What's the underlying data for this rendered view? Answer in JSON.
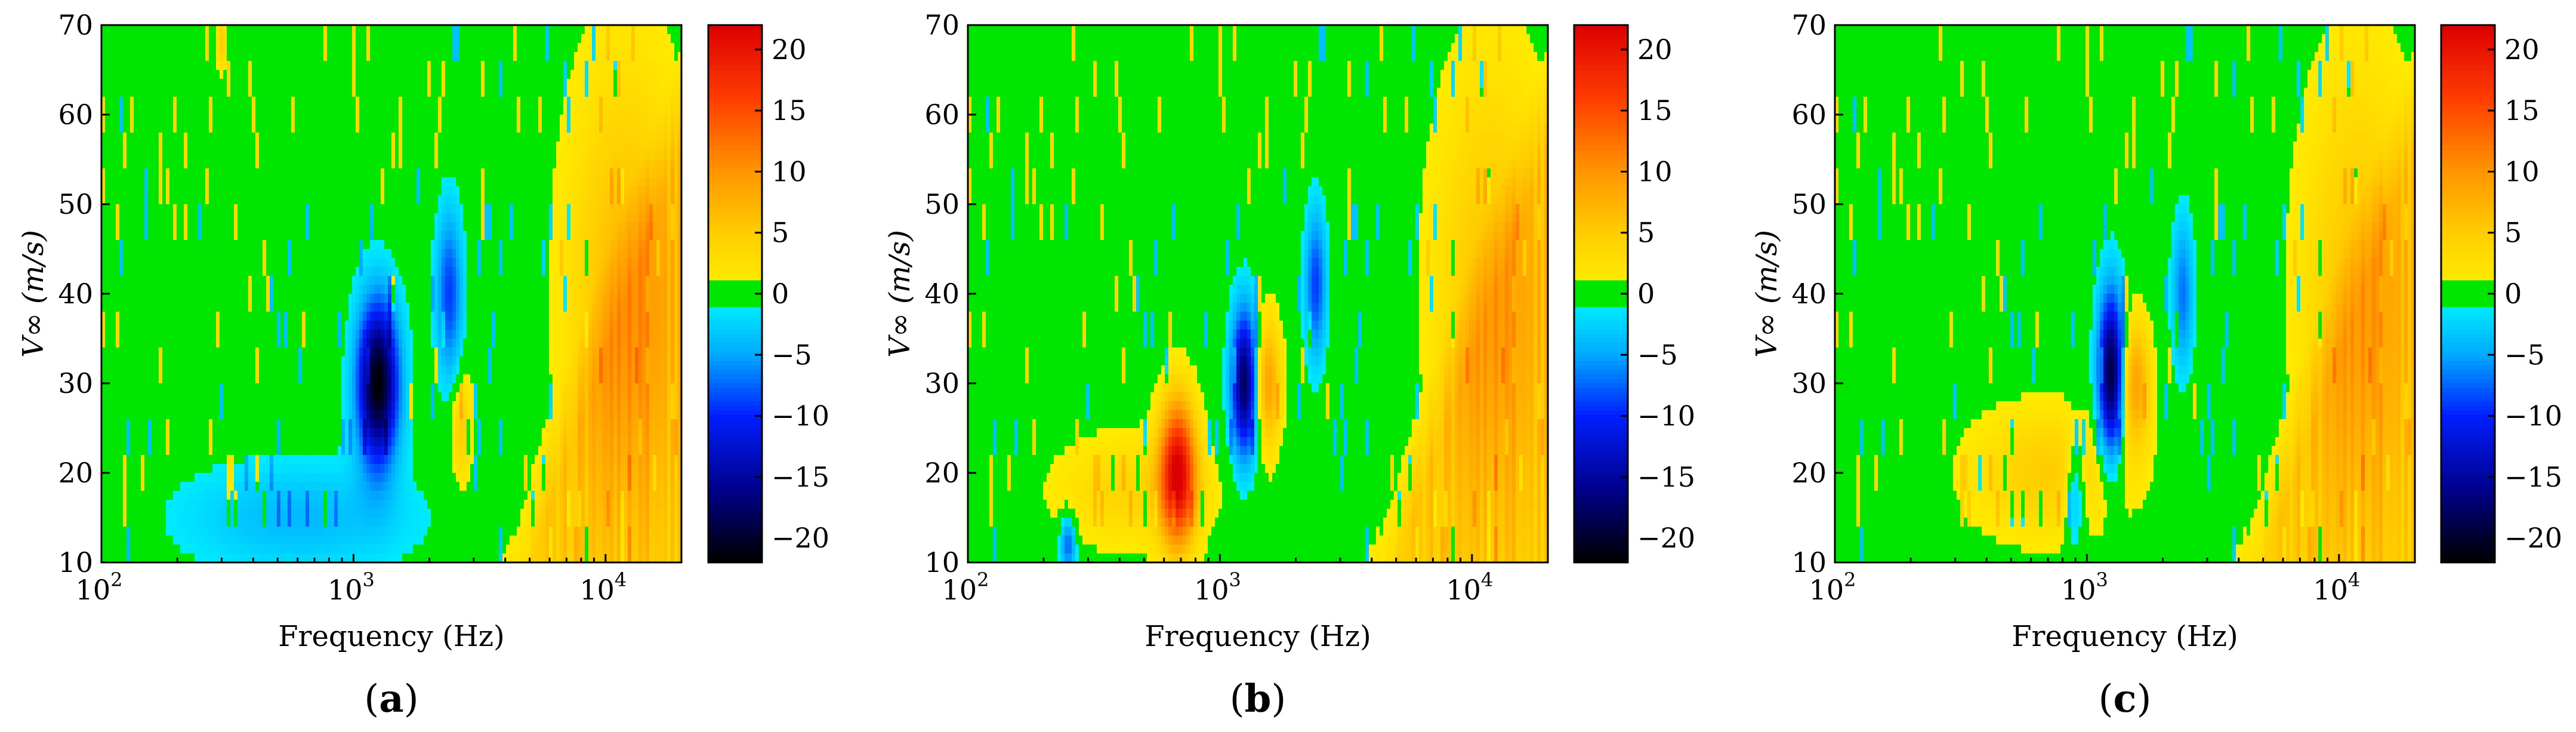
{
  "panels": [
    {
      "label_open": "(",
      "label_letter": "a",
      "label_close": ")",
      "chart_data": {
        "type": "heatmap",
        "xlabel": "Frequency (Hz)",
        "ylabel": "V∞ (m/s)",
        "xscale": "log",
        "xlim": [
          100,
          20000
        ],
        "ylim": [
          10,
          70
        ],
        "xticks": [
          {
            "value": 100,
            "base": "10",
            "exp": "2"
          },
          {
            "value": 1000,
            "base": "10",
            "exp": "3"
          },
          {
            "value": 10000,
            "base": "10",
            "exp": "4"
          }
        ],
        "yticks": [
          10,
          20,
          30,
          40,
          50,
          60,
          70
        ],
        "colorbar": {
          "range": [
            -22,
            22
          ],
          "ticks": [
            "20",
            "15",
            "10",
            "5",
            "0",
            "−5",
            "−10",
            "−15",
            "−20"
          ],
          "tick_values": [
            20,
            15,
            10,
            5,
            0,
            -5,
            -10,
            -15,
            -20
          ],
          "neutral_band": [
            -1,
            1
          ]
        },
        "features": [
          {
            "type": "negative",
            "f": 1250,
            "v": 30,
            "df": 0.08,
            "dv": 9,
            "amp": -22
          },
          {
            "type": "negative",
            "f": 2400,
            "v": 40,
            "df": 0.05,
            "dv": 9,
            "amp": -9
          },
          {
            "type": "negative",
            "f": 600,
            "v": 15,
            "df": 0.45,
            "dv": 6,
            "amp": -4
          },
          {
            "type": "positive",
            "f": 2700,
            "v": 25,
            "df": 0.04,
            "dv": 6,
            "amp": 5
          },
          {
            "type": "positive",
            "f": 300,
            "v": 68,
            "df": 0.02,
            "dv": 3,
            "amp": 5
          },
          {
            "type": "positive",
            "f": 12000,
            "v": 40,
            "df": 0.22,
            "dv": 25,
            "amp": 7
          }
        ]
      }
    },
    {
      "label_open": "(",
      "label_letter": "b",
      "label_close": ")",
      "chart_data": {
        "type": "heatmap",
        "xlabel": "Frequency (Hz)",
        "ylabel": "V∞ (m/s)",
        "xscale": "log",
        "xlim": [
          100,
          20000
        ],
        "ylim": [
          10,
          70
        ],
        "xticks": [
          {
            "value": 100,
            "base": "10",
            "exp": "2"
          },
          {
            "value": 1000,
            "base": "10",
            "exp": "3"
          },
          {
            "value": 10000,
            "base": "10",
            "exp": "4"
          }
        ],
        "yticks": [
          10,
          20,
          30,
          40,
          50,
          60,
          70
        ],
        "colorbar": {
          "range": [
            -22,
            22
          ],
          "ticks": [
            "20",
            "15",
            "10",
            "5",
            "0",
            "−5",
            "−10",
            "−15",
            "−20"
          ],
          "tick_values": [
            20,
            15,
            10,
            5,
            0,
            -5,
            -10,
            -15,
            -20
          ],
          "neutral_band": [
            -1,
            1
          ]
        },
        "features": [
          {
            "type": "positive",
            "f": 680,
            "v": 20,
            "df": 0.07,
            "dv": 8,
            "amp": 21
          },
          {
            "type": "negative",
            "f": 1250,
            "v": 30,
            "df": 0.05,
            "dv": 8,
            "amp": -18
          },
          {
            "type": "positive",
            "f": 1550,
            "v": 30,
            "df": 0.05,
            "dv": 7,
            "amp": 9
          },
          {
            "type": "negative",
            "f": 2400,
            "v": 41,
            "df": 0.04,
            "dv": 8,
            "amp": -9
          },
          {
            "type": "negative",
            "f": 250,
            "v": 12,
            "df": 0.03,
            "dv": 3,
            "amp": -8
          },
          {
            "type": "positive",
            "f": 450,
            "v": 18,
            "df": 0.3,
            "dv": 6,
            "amp": 4
          },
          {
            "type": "positive",
            "f": 12000,
            "v": 40,
            "df": 0.22,
            "dv": 25,
            "amp": 6
          }
        ]
      }
    },
    {
      "label_open": "(",
      "label_letter": "c",
      "label_close": ")",
      "chart_data": {
        "type": "heatmap",
        "xlabel": "Frequency (Hz)",
        "ylabel": "V∞ (m/s)",
        "xscale": "log",
        "xlim": [
          100,
          20000
        ],
        "ylim": [
          10,
          70
        ],
        "xticks": [
          {
            "value": 100,
            "base": "10",
            "exp": "2"
          },
          {
            "value": 1000,
            "base": "10",
            "exp": "3"
          },
          {
            "value": 10000,
            "base": "10",
            "exp": "4"
          }
        ],
        "yticks": [
          10,
          20,
          30,
          40,
          50,
          60,
          70
        ],
        "colorbar": {
          "range": [
            -22,
            22
          ],
          "ticks": [
            "20",
            "15",
            "10",
            "5",
            "0",
            "−5",
            "−10",
            "−15",
            "−20"
          ],
          "tick_values": [
            20,
            15,
            10,
            5,
            0,
            -5,
            -10,
            -15,
            -20
          ],
          "neutral_band": [
            -1,
            1
          ]
        },
        "features": [
          {
            "type": "negative",
            "f": 1250,
            "v": 31,
            "df": 0.05,
            "dv": 9,
            "amp": -20
          },
          {
            "type": "positive",
            "f": 1550,
            "v": 30,
            "df": 0.06,
            "dv": 7,
            "amp": 9
          },
          {
            "type": "negative",
            "f": 2400,
            "v": 40,
            "df": 0.04,
            "dv": 8,
            "amp": -7
          },
          {
            "type": "positive",
            "f": 700,
            "v": 20,
            "df": 0.3,
            "dv": 7,
            "amp": 5
          },
          {
            "type": "negative",
            "f": 900,
            "v": 18,
            "df": 0.04,
            "dv": 6,
            "amp": -6
          },
          {
            "type": "positive",
            "f": 12000,
            "v": 40,
            "df": 0.22,
            "dv": 25,
            "amp": 6
          }
        ]
      }
    }
  ]
}
